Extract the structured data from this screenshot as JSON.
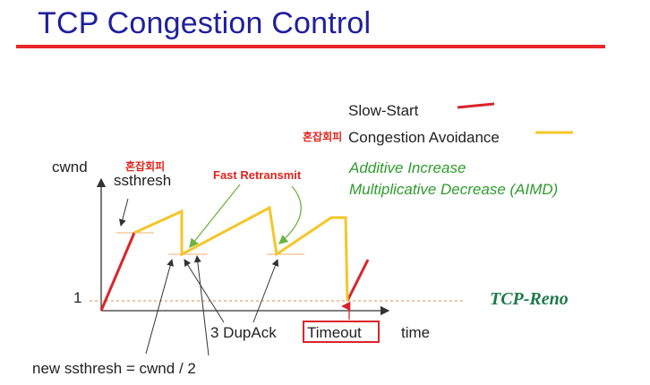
{
  "title": "TCP Congestion Control",
  "legend": {
    "slow_start": "Slow-Start",
    "congestion_avoidance": "Congestion Avoidance",
    "korean_note": "혼잡회피"
  },
  "aimd": {
    "line1": "Additive Increase",
    "line2": "Multiplicative Decrease (AIMD)"
  },
  "axis": {
    "y_label": "cwnd",
    "x_label": "time",
    "one_label": "1"
  },
  "annotations": {
    "ssthresh_korean": "혼잡회피",
    "ssthresh": "ssthresh",
    "fast_retransmit": "Fast Retransmit",
    "dup_ack": "3 DupAck",
    "timeout": "Timeout",
    "new_ssthresh": "new ssthresh = cwnd / 2",
    "variant": "TCP-Reno"
  },
  "colors": {
    "title": "#1f1f9e",
    "title_rule": "#e8262a",
    "slow_start": "#d9252a",
    "congestion_avoidance": "#f5c52a",
    "green": "#2e9b2e",
    "red_text": "#e0241d",
    "reno": "#1e7a4a"
  }
}
